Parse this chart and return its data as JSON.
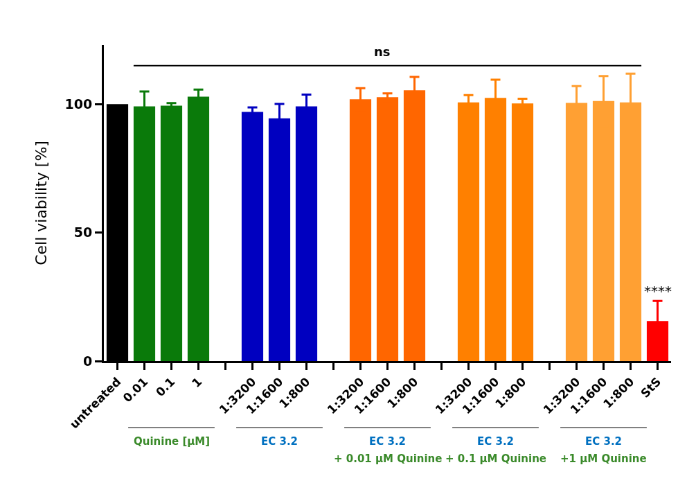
{
  "chart_data": {
    "type": "bar",
    "ylabel": "Cell viability [%]",
    "categories": [
      "untreated",
      "0.01",
      "0.1",
      "1",
      null,
      "1:3200",
      "1:1600",
      "1:800",
      null,
      "1:3200",
      "1:1600",
      "1:800",
      null,
      "1:3200",
      "1:1600",
      "1:800",
      null,
      "1:3200",
      "1:1600",
      "1:800",
      "StS"
    ],
    "values": [
      100,
      99.1,
      99.4,
      102.9,
      null,
      97.0,
      94.5,
      99.1,
      null,
      101.9,
      102.7,
      105.4,
      null,
      100.7,
      102.4,
      100.3,
      null,
      100.5,
      101.2,
      100.7,
      15.6
    ],
    "errors": [
      null,
      5.8,
      1.0,
      2.8,
      null,
      1.7,
      5.6,
      4.6,
      null,
      4.3,
      1.5,
      5.2,
      null,
      2.8,
      7.1,
      1.8,
      null,
      6.5,
      9.7,
      11.2,
      7.8
    ],
    "colors": [
      "#000000",
      "#0a7a0a",
      "#0a7a0a",
      "#0a7a0a",
      null,
      "#0000c0",
      "#0000c0",
      "#0000c0",
      null,
      "#ff6600",
      "#ff6600",
      "#ff6600",
      null,
      "#ff8000",
      "#ff8000",
      "#ff8000",
      null,
      "#ffa033",
      "#ffa033",
      "#ffa033",
      "#ff0000"
    ],
    "ylim": [
      0,
      123
    ],
    "yticks": [
      0,
      50,
      100
    ],
    "ref_lines": [
      {
        "axis": "y",
        "value": 115,
        "label": "ns",
        "color": "#000000"
      }
    ],
    "annotations": [
      "****",
      "Quinine [µM]",
      "EC 3.2",
      "EC 3.2",
      "+ 0.01 µM Quinine",
      "EC 3.2",
      "+ 0.1 µM Quinine",
      "EC 3.2",
      "+1 µM Quinine"
    ]
  }
}
